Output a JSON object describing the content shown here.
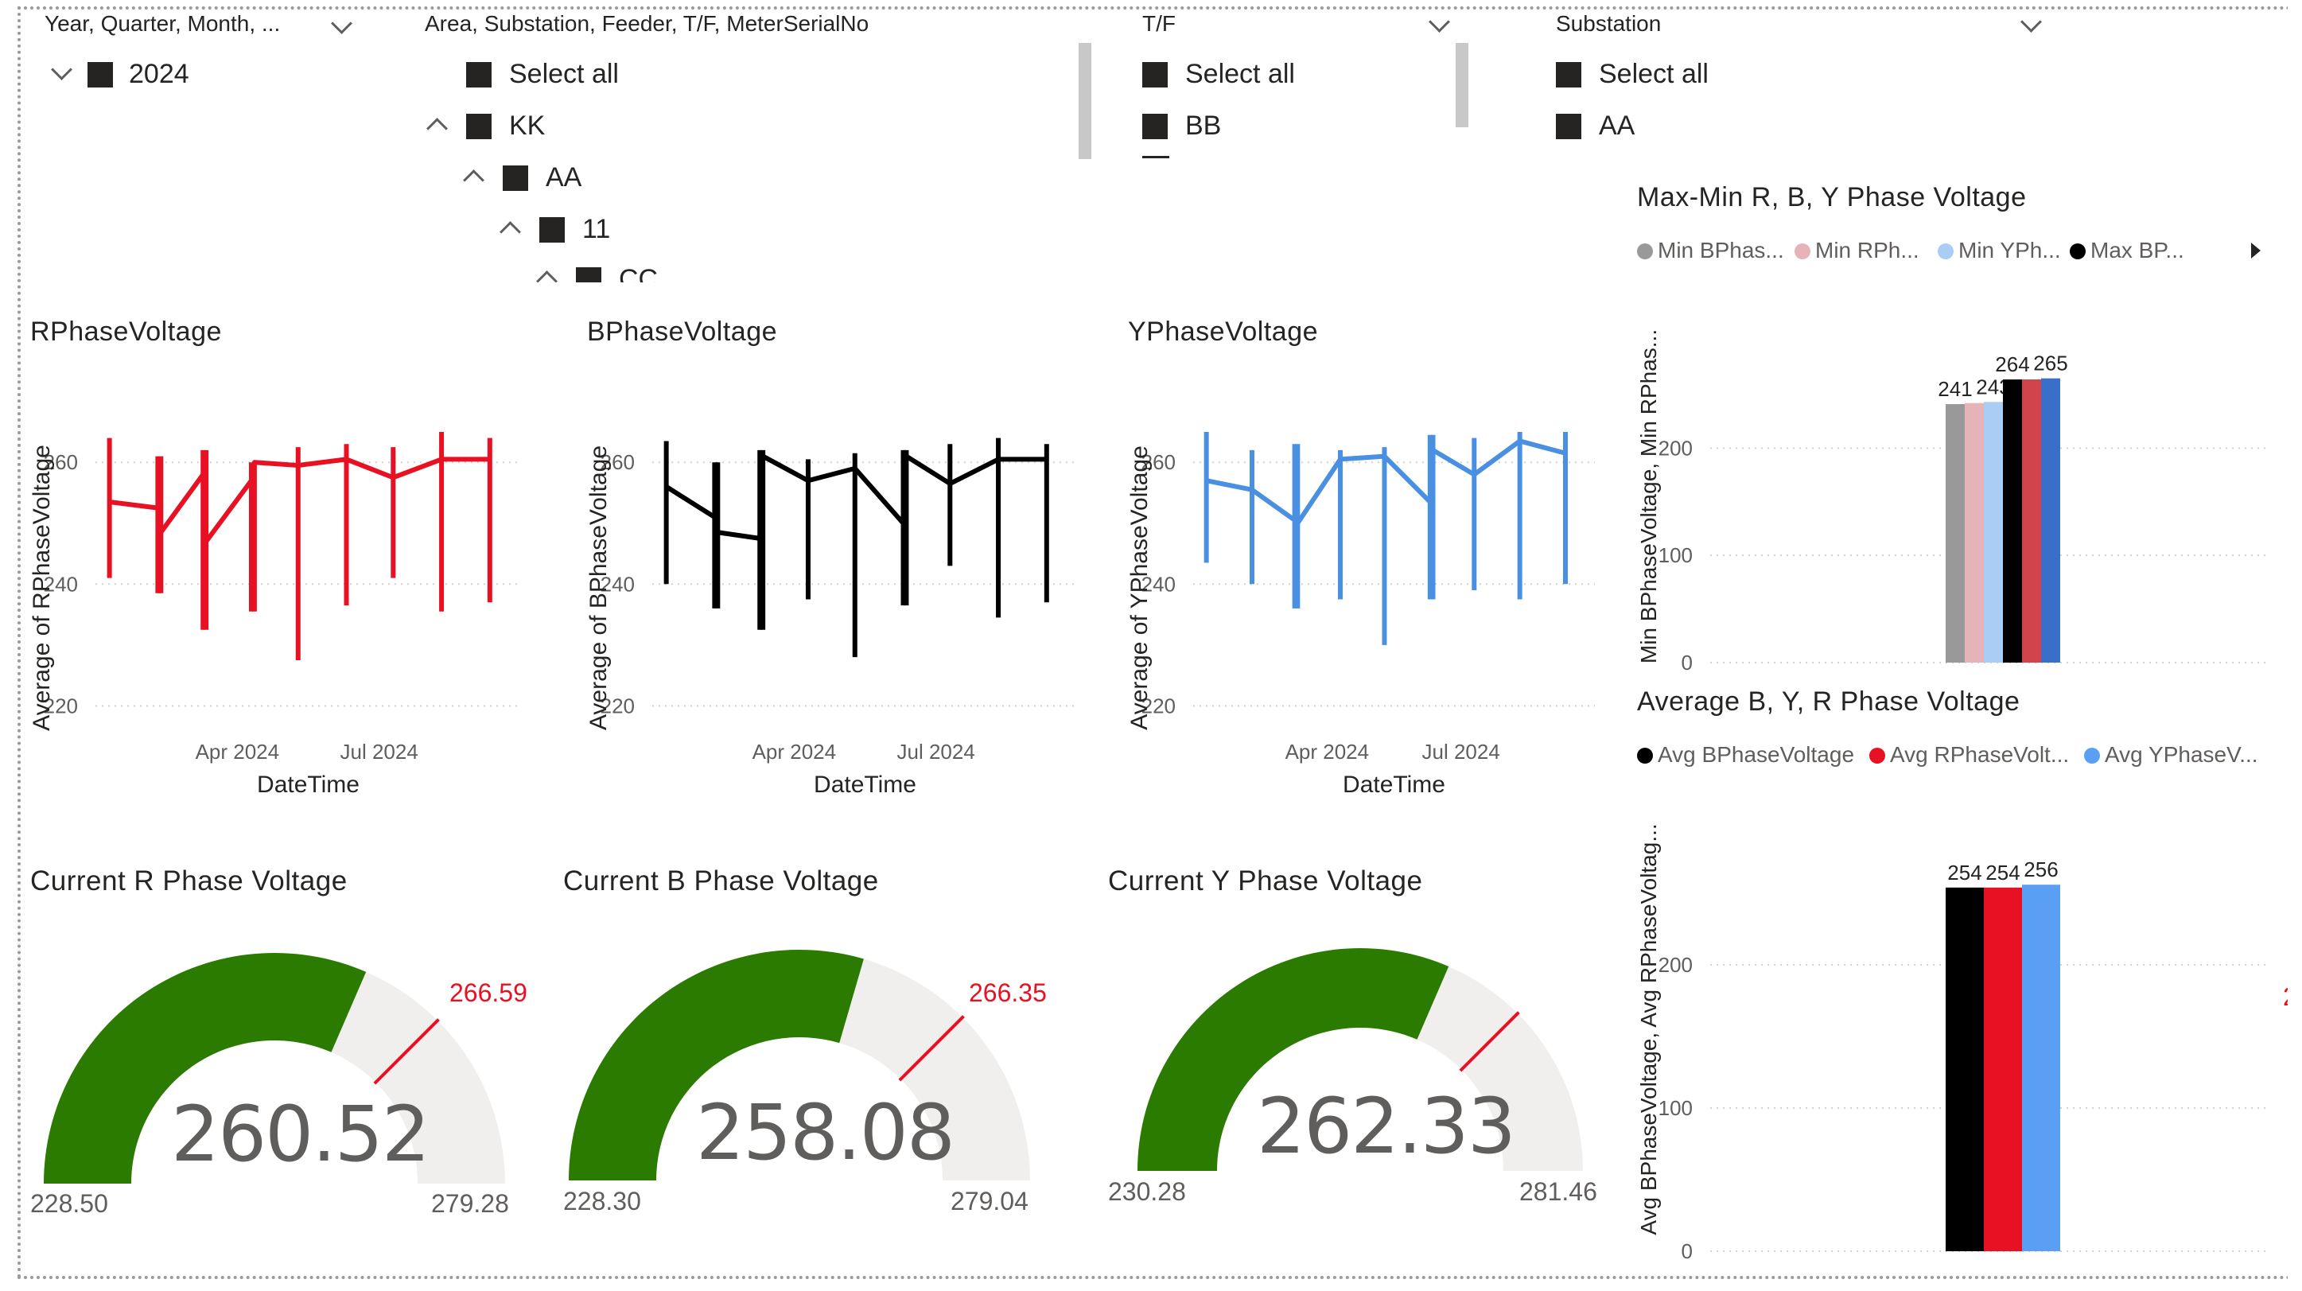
{
  "slicers": {
    "date": {
      "title": "Year, Quarter, Month, ...",
      "items": [
        {
          "label": "2024"
        }
      ]
    },
    "hierarchy": {
      "title": "Area, Substation, Feeder, T/F, MeterSerialNo",
      "items": [
        {
          "label": "Select all"
        },
        {
          "label": "KK"
        },
        {
          "label": "AA"
        },
        {
          "label": "11"
        },
        {
          "label": "CC"
        }
      ]
    },
    "tf": {
      "title": "T/F",
      "items": [
        {
          "label": "Select all"
        },
        {
          "label": "BB"
        }
      ]
    },
    "substation": {
      "title": "Substation",
      "items": [
        {
          "label": "Select all"
        },
        {
          "label": "AA"
        }
      ]
    }
  },
  "line_charts": [
    {
      "title": "RPhaseVoltage",
      "ylabel": "Average of RPhaseVoltage",
      "xlabel": "DateTime",
      "color": "#e81123"
    },
    {
      "title": "BPhaseVoltage",
      "ylabel": "Average of BPhaseVoltage",
      "xlabel": "DateTime",
      "color": "#000000"
    },
    {
      "title": "YPhaseVoltage",
      "ylabel": "Average of YPhaseVoltage",
      "xlabel": "DateTime",
      "color": "#4a90e2"
    }
  ],
  "gauges": [
    {
      "title": "Current R Phase Voltage",
      "value": "260.52",
      "min": "228.50",
      "max": "279.28",
      "target": "266.59",
      "fill_fraction": 0.63,
      "target_fraction": 0.75
    },
    {
      "title": "Current B Phase Voltage",
      "value": "258.08",
      "min": "228.30",
      "max": "279.04",
      "target": "266.35",
      "fill_fraction": 0.59,
      "target_fraction": 0.75
    },
    {
      "title": "Current Y Phase Voltage",
      "value": "262.33",
      "min": "230.28",
      "max": "281.46",
      "target": "268.66",
      "fill_fraction": 0.63,
      "target_fraction": 0.75
    }
  ],
  "bar_charts": [
    {
      "title": "Max-Min R, B, Y Phase Voltage",
      "ylabel": "Min BPhaseVoltage, Min RPhas...",
      "legend": [
        {
          "label": "Min BPhas...",
          "color": "#999999"
        },
        {
          "label": "Min RPh...",
          "color": "#e6b4b8"
        },
        {
          "label": "Min YPh...",
          "color": "#a9cdf5"
        },
        {
          "label": "Max BP...",
          "color": "#000000"
        }
      ]
    },
    {
      "title": "Average B, Y, R Phase Voltage",
      "ylabel": "Avg BPhaseVoltage, Avg RPhaseVoltag...",
      "legend": [
        {
          "label": "Avg BPhaseVoltage",
          "color": "#000000"
        },
        {
          "label": "Avg RPhaseVolt...",
          "color": "#e81123"
        },
        {
          "label": "Avg YPhaseV...",
          "color": "#5b9ff5"
        }
      ]
    }
  ],
  "chart_data": [
    {
      "type": "line",
      "title": "RPhaseVoltage",
      "xlabel": "DateTime",
      "ylabel": "Average of RPhaseVoltage",
      "x_ticks": [
        "Apr 2024",
        "Jul 2024"
      ],
      "y_ticks": [
        220,
        240,
        260
      ],
      "ylim": [
        216,
        268
      ],
      "grid": true,
      "xlim": [
        "2024-01-01",
        "2024-09-30"
      ],
      "x": [
        "2024-01-10",
        "2024-02-10",
        "2024-02-12",
        "2024-03-10",
        "2024-03-12",
        "2024-04-10",
        "2024-04-12",
        "2024-05-10",
        "2024-06-10",
        "2024-07-10",
        "2024-08-10",
        "2024-09-10"
      ],
      "y": [
        253.5,
        252.5,
        248.5,
        258,
        247,
        257,
        260,
        259.5,
        260.5,
        257.5,
        260.5,
        260.5
      ],
      "range_low": [
        241,
        238.5,
        238.5,
        232.5,
        232.5,
        235.5,
        235.5,
        227.5,
        236.5,
        241,
        235.5,
        237
      ],
      "range_high": [
        264,
        261,
        261,
        262,
        262,
        260,
        260,
        262.5,
        263,
        262.5,
        265,
        264
      ]
    },
    {
      "type": "line",
      "title": "BPhaseVoltage",
      "xlabel": "DateTime",
      "ylabel": "Average of BPhaseVoltage",
      "x_ticks": [
        "Apr 2024",
        "Jul 2024"
      ],
      "y_ticks": [
        220,
        240,
        260
      ],
      "ylim": [
        216,
        268
      ],
      "grid": true,
      "xlim": [
        "2024-01-01",
        "2024-09-30"
      ],
      "x": [
        "2024-01-10",
        "2024-02-10",
        "2024-02-12",
        "2024-03-10",
        "2024-03-12",
        "2024-04-10",
        "2024-05-10",
        "2024-06-10",
        "2024-06-12",
        "2024-07-10",
        "2024-08-10",
        "2024-09-10"
      ],
      "y": [
        256,
        251,
        248.5,
        247.5,
        261,
        257,
        259,
        250,
        261,
        256.5,
        260.5,
        260.5
      ],
      "range_low": [
        240,
        236,
        236,
        232.5,
        232.5,
        237.5,
        228,
        236.5,
        236.5,
        243,
        234.5,
        237
      ],
      "range_high": [
        263.5,
        260,
        260,
        262,
        262,
        260.5,
        261.5,
        262,
        262,
        263,
        264,
        263
      ]
    },
    {
      "type": "line",
      "title": "YPhaseVoltage",
      "xlabel": "DateTime",
      "ylabel": "Average of YPhaseVoltage",
      "x_ticks": [
        "Apr 2024",
        "Jul 2024"
      ],
      "y_ticks": [
        220,
        240,
        260
      ],
      "ylim": [
        216,
        268
      ],
      "grid": true,
      "xlim": [
        "2024-01-01",
        "2024-09-30"
      ],
      "x": [
        "2024-01-10",
        "2024-02-10",
        "2024-03-10",
        "2024-03-12",
        "2024-04-10",
        "2024-05-10",
        "2024-06-10",
        "2024-06-12",
        "2024-07-10",
        "2024-08-10",
        "2024-09-10"
      ],
      "y": [
        257,
        255.5,
        250.5,
        250,
        260.5,
        261,
        253.5,
        262,
        258,
        263.5,
        261.5
      ],
      "range_low": [
        243.5,
        240,
        236,
        236,
        237.5,
        230,
        237.5,
        237.5,
        239,
        237.5,
        240
      ],
      "range_high": [
        265,
        262,
        263,
        263,
        262,
        262.5,
        264.5,
        264.5,
        264,
        265,
        265
      ]
    },
    {
      "type": "bar",
      "title": "Max-Min R, B, Y Phase Voltage",
      "ylabel": "Min BPhaseVoltage, Min RPhas...",
      "y_ticks": [
        0,
        100,
        200
      ],
      "ylim": [
        0,
        310
      ],
      "grid": true,
      "series": [
        {
          "name": "Min BPhas...",
          "color": "#999999",
          "value": 241,
          "label": "241"
        },
        {
          "name": "Min RPh...",
          "color": "#e6b4b8",
          "value": 242,
          "label": ""
        },
        {
          "name": "Min YPh...",
          "color": "#a9cdf5",
          "value": 243,
          "label": "243"
        },
        {
          "name": "Max BP...",
          "color": "#000000",
          "value": 264,
          "label": "264"
        },
        {
          "color": "#d1444b",
          "value": 264,
          "label": ""
        },
        {
          "color": "#3a6fc9",
          "value": 265,
          "label": "265"
        }
      ]
    },
    {
      "type": "bar",
      "title": "Average B, Y, R Phase Voltage",
      "ylabel": "Avg BPhaseVoltage, Avg RPhaseVoltag...",
      "y_ticks": [
        0,
        100,
        200
      ],
      "ylim": [
        0,
        310
      ],
      "grid": true,
      "series": [
        {
          "name": "Avg BPhaseVoltage",
          "color": "#000000",
          "value": 254,
          "label": "254"
        },
        {
          "name": "Avg RPhaseVolt...",
          "color": "#e81123",
          "value": 254,
          "label": "254"
        },
        {
          "name": "Avg YPhaseV...",
          "color": "#5b9ff5",
          "value": 256,
          "label": "256"
        }
      ]
    }
  ]
}
